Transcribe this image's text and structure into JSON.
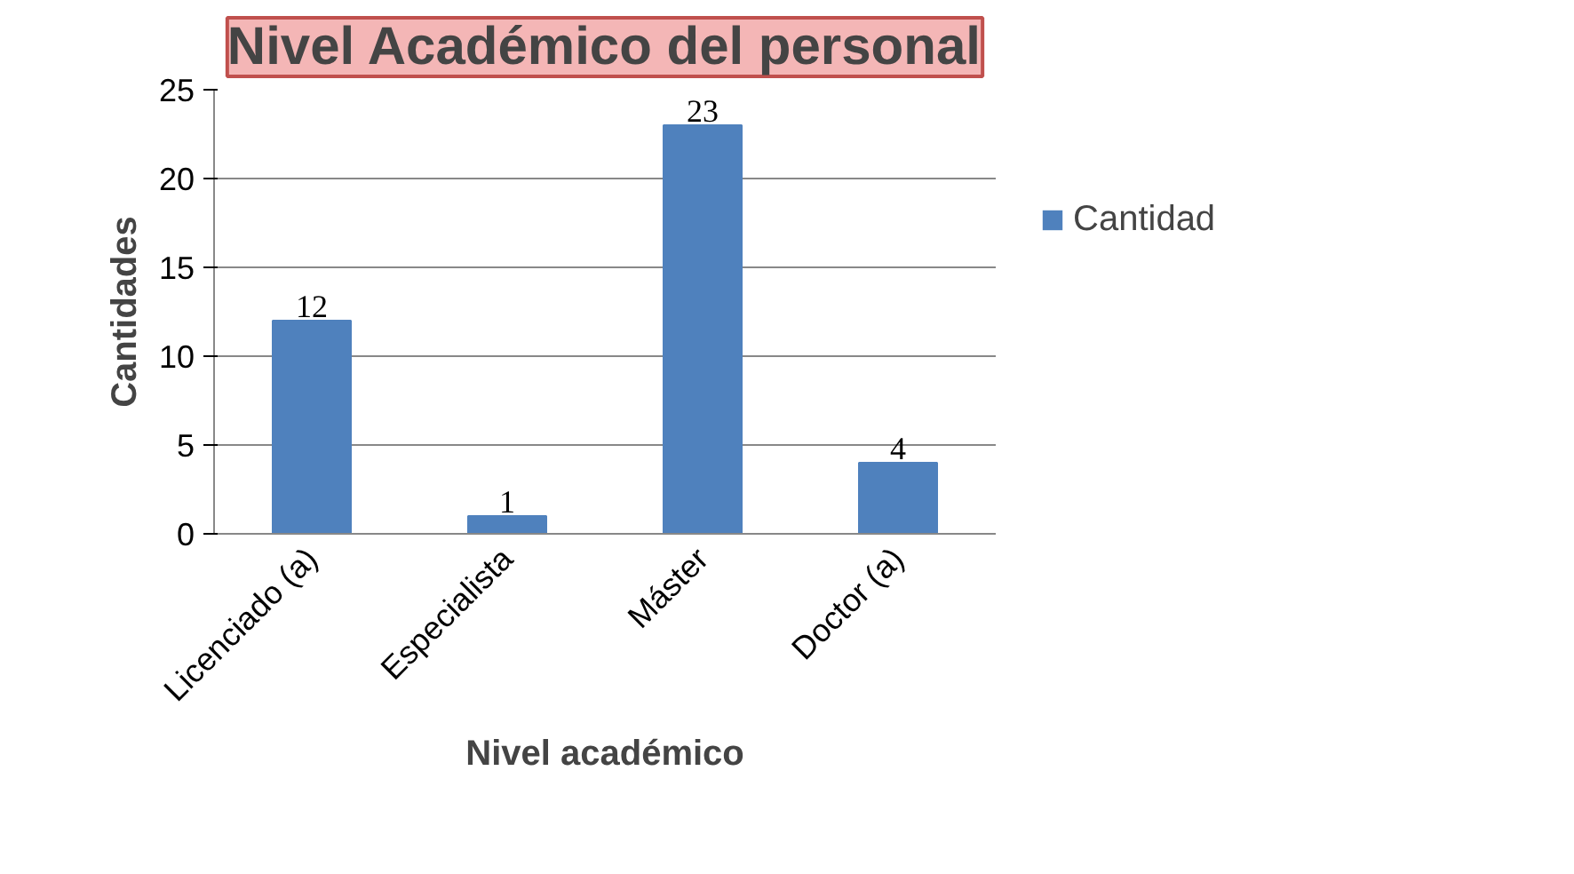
{
  "chart_data": {
    "type": "bar",
    "title": "Nivel Académico del personal",
    "xlabel": "Nivel académico",
    "ylabel": "Cantidades",
    "categories": [
      "Licenciado (a)",
      "Especialista",
      "Máster",
      "Doctor (a)"
    ],
    "series": [
      {
        "name": "Cantidad",
        "color": "#4f81bd",
        "values": [
          12,
          1,
          23,
          4
        ]
      }
    ],
    "ylim": [
      0,
      25
    ],
    "yticks": [
      0,
      5,
      10,
      15,
      20,
      25
    ],
    "grid": "y",
    "legend": "right",
    "data_labels": true
  }
}
